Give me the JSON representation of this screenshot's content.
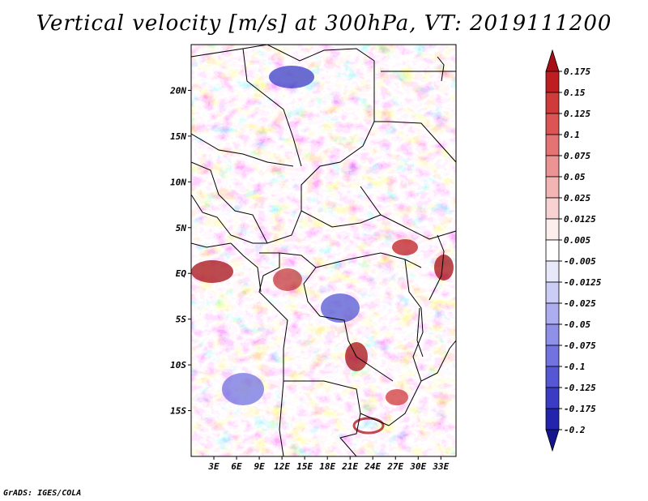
{
  "title": "Vertical velocity [m/s] at 300hPa, VT: 2019111200",
  "footer": "GrADS: IGES/COLA",
  "map": {
    "variable": "Vertical velocity",
    "units": "m/s",
    "level": "300hPa",
    "valid_time": "2019111200",
    "lat_labels": [
      "20N",
      "15N",
      "10N",
      "5N",
      "EQ",
      "5S",
      "10S",
      "15S"
    ],
    "lat_values": [
      20,
      15,
      10,
      5,
      0,
      -5,
      -10,
      -15
    ],
    "lon_labels": [
      "3E",
      "6E",
      "9E",
      "12E",
      "15E",
      "18E",
      "21E",
      "24E",
      "27E",
      "30E",
      "33E"
    ],
    "lon_values": [
      3,
      6,
      9,
      12,
      15,
      18,
      21,
      24,
      27,
      30,
      33
    ],
    "lon_range": [
      0,
      35
    ],
    "lat_range": [
      -20,
      25
    ]
  },
  "colorbar": {
    "labels": [
      "0.175",
      "0.15",
      "0.125",
      "0.1",
      "0.075",
      "0.05",
      "0.025",
      "0.0125",
      "0.005",
      "-0.005",
      "-0.0125",
      "-0.025",
      "-0.05",
      "-0.075",
      "-0.1",
      "-0.125",
      "-0.175",
      "-0.2"
    ],
    "colors": [
      "#a50f15",
      "#be1e22",
      "#cf3a3a",
      "#dc5555",
      "#e47474",
      "#ec9393",
      "#f3b4b4",
      "#f8d2d2",
      "#fdeeee",
      "#ffffff",
      "#e8e8fb",
      "#cccdf6",
      "#adaef0",
      "#8f90e8",
      "#7273df",
      "#5557d4",
      "#3a3cc4",
      "#2224ad",
      "#15168e"
    ],
    "top_color": "#a50f15",
    "bottom_color": "#15168e"
  }
}
